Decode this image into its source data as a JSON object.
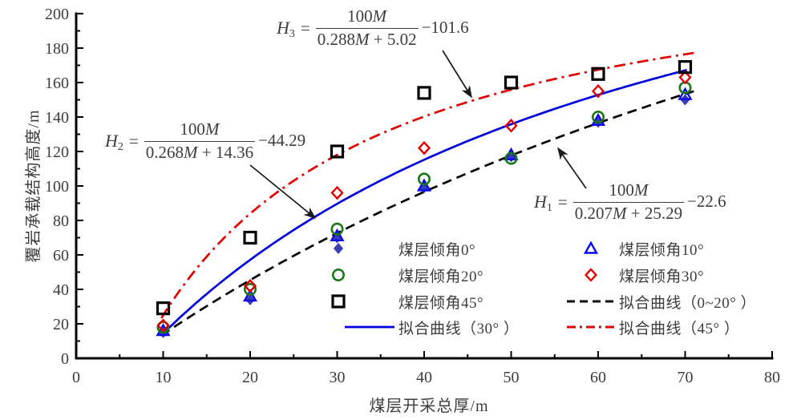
{
  "figure": {
    "background": "#ffffff"
  },
  "axes": {
    "x": {
      "title": "煤层开采总厚/m",
      "min": 0,
      "max": 80,
      "major_tick_step": 10,
      "minor_tick_step": 5,
      "tick_labels": [
        "0",
        "10",
        "20",
        "30",
        "40",
        "50",
        "60",
        "70",
        "80"
      ]
    },
    "y": {
      "title": "覆岩承载结构高度/m",
      "min": 0,
      "max": 200,
      "major_tick_step": 20,
      "minor_tick_step": 10,
      "tick_labels": [
        "0",
        "20",
        "40",
        "60",
        "80",
        "100",
        "120",
        "140",
        "160",
        "180",
        "200"
      ]
    }
  },
  "chart_data": {
    "type": "scatter",
    "title": "",
    "x_label": "煤层开采总厚/m",
    "y_label": "覆岩承载结构高度/m",
    "x_range": [
      0,
      80
    ],
    "y_range": [
      0,
      200
    ],
    "grid": false,
    "legend_position": "inside-bottom-right",
    "series": [
      {
        "name": "煤层倾角0°",
        "marker": "diamond-filled",
        "color": "#3C3CB4",
        "points": [
          [
            10,
            15
          ],
          [
            20,
            34
          ],
          [
            30,
            70
          ],
          [
            40,
            99
          ],
          [
            50,
            117
          ],
          [
            60,
            137
          ],
          [
            70,
            150
          ]
        ]
      },
      {
        "name": "煤层倾角10°",
        "marker": "triangle-open",
        "color": "#0808E8",
        "points": [
          [
            10,
            16
          ],
          [
            20,
            36
          ],
          [
            30,
            71
          ],
          [
            40,
            100
          ],
          [
            50,
            118
          ],
          [
            60,
            138
          ],
          [
            70,
            153
          ]
        ]
      },
      {
        "name": "煤层倾角20°",
        "marker": "circle-open",
        "color": "#167816",
        "points": [
          [
            10,
            18
          ],
          [
            20,
            40
          ],
          [
            30,
            75
          ],
          [
            40,
            104
          ],
          [
            50,
            116
          ],
          [
            60,
            140
          ],
          [
            70,
            157
          ]
        ]
      },
      {
        "name": "煤层倾角30°",
        "marker": "diamond-open",
        "color": "#E00000",
        "points": [
          [
            10,
            19
          ],
          [
            20,
            42
          ],
          [
            30,
            96
          ],
          [
            40,
            122
          ],
          [
            50,
            135
          ],
          [
            60,
            155
          ],
          [
            70,
            163
          ]
        ]
      },
      {
        "name": "煤层倾角45°",
        "marker": "square-open",
        "color": "#000000",
        "points": [
          [
            10,
            29
          ],
          [
            20,
            70
          ],
          [
            30,
            120
          ],
          [
            40,
            154
          ],
          [
            50,
            160
          ],
          [
            60,
            165
          ],
          [
            70,
            169
          ]
        ]
      }
    ],
    "fit_curves": [
      {
        "name": "拟合曲线（0~20° ）",
        "formula": "H1 = 100M/(0.207M+25.29) − 22.6",
        "a": 0.207,
        "b": 25.29,
        "c": 22.6,
        "line_style": "dashed",
        "color": "#000000",
        "domain": [
          9.8,
          71.0
        ]
      },
      {
        "name": "拟合曲线（30° ）",
        "formula": "H2 = 100M/(0.268M+14.36) − 44.29",
        "a": 0.268,
        "b": 14.36,
        "c": 44.29,
        "line_style": "solid",
        "color": "#0000DC",
        "domain": [
          9.8,
          70.3
        ]
      },
      {
        "name": "拟合曲线（45° ）",
        "formula": "H3 = 100M/(0.288M+5.02) − 101.6",
        "a": 0.288,
        "b": 5.02,
        "c": 101.6,
        "line_style": "dashdot",
        "color": "#E00000",
        "domain": [
          9.8,
          71.3
        ]
      }
    ]
  },
  "equations": [
    {
      "id": "H3",
      "variable": "H",
      "subscript": "3",
      "equals": "=",
      "numerator": "100M",
      "denominator": "0.288M + 5.02",
      "constant": "−101.6"
    },
    {
      "id": "H2",
      "variable": "H",
      "subscript": "2",
      "equals": "=",
      "numerator": "100M",
      "denominator": "0.268M + 14.36",
      "constant": "−44.29"
    },
    {
      "id": "H1",
      "variable": "H",
      "subscript": "1",
      "equals": "=",
      "numerator": "100M",
      "denominator": "0.207M + 25.29",
      "constant": "−22.6"
    }
  ],
  "legend": {
    "items": [
      {
        "label": "煤层倾角0°",
        "marker": "diamond-filled",
        "color": "#3C3CB4"
      },
      {
        "label": "煤层倾角10°",
        "marker": "triangle-open",
        "color": "#0808E8"
      },
      {
        "label": "煤层倾角20°",
        "marker": "circle-open",
        "color": "#167816"
      },
      {
        "label": "煤层倾角30°",
        "marker": "diamond-open",
        "color": "#E00000"
      },
      {
        "label": "煤层倾角45°",
        "marker": "square-open",
        "color": "#000000"
      },
      {
        "label": "拟合曲线（0~20° ）",
        "marker": "line-dashed",
        "color": "#000000"
      },
      {
        "label": "拟合曲线（30° ）",
        "marker": "line-solid",
        "color": "#0000DC"
      },
      {
        "label": "拟合曲线（45° ）",
        "marker": "line-dashdot",
        "color": "#E00000"
      }
    ]
  }
}
